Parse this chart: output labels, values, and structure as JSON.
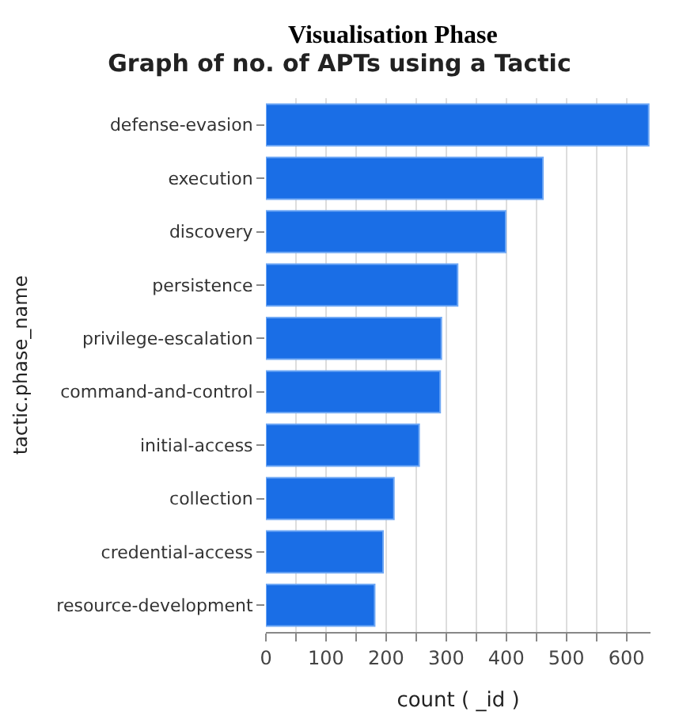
{
  "chart_data": {
    "type": "bar",
    "orientation": "horizontal",
    "title": "Graph of no. of APTs using a Tactic",
    "annotations": [
      "Visualisation Phase"
    ],
    "xlabel": "count ( _id )",
    "ylabel": "tactic.phase_name",
    "categories": [
      "defense-evasion",
      "execution",
      "discovery",
      "persistence",
      "privilege-escalation",
      "command-and-control",
      "initial-access",
      "collection",
      "credential-access",
      "resource-development"
    ],
    "values": [
      637,
      461,
      399,
      319,
      292,
      290,
      255,
      213,
      195,
      181
    ],
    "color": "#1a6ee6",
    "xlim": [
      0,
      640
    ],
    "xticks": [
      0,
      {
        "value": 50,
        "label": null
      },
      100,
      {
        "value": 150,
        "label": null
      },
      200,
      {
        "value": 250,
        "label": null
      },
      300,
      {
        "value": 350,
        "label": null
      },
      400,
      {
        "value": 450,
        "label": null
      },
      500,
      {
        "value": 550,
        "label": null
      },
      600
    ],
    "grid": "x"
  }
}
